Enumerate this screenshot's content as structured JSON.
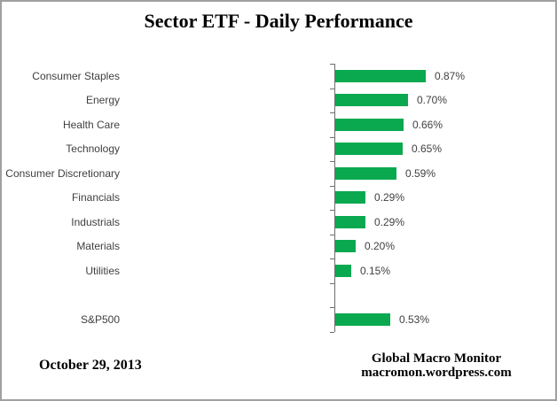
{
  "title": "Sector ETF - Daily Performance",
  "chart_data": {
    "type": "bar",
    "orientation": "horizontal",
    "title": "Sector ETF - Daily Performance",
    "value_unit": "percent",
    "xlim": [
      0,
      1.0
    ],
    "grid": false,
    "legend": false,
    "rows": [
      {
        "label": "Consumer Staples",
        "value": 0.87,
        "display": "0.87%"
      },
      {
        "label": "Energy",
        "value": 0.7,
        "display": "0.70%"
      },
      {
        "label": "Health Care",
        "value": 0.66,
        "display": "0.66%"
      },
      {
        "label": "Technology",
        "value": 0.65,
        "display": "0.65%"
      },
      {
        "label": "Consumer Discretionary",
        "value": 0.59,
        "display": "0.59%"
      },
      {
        "label": "Financials",
        "value": 0.29,
        "display": "0.29%"
      },
      {
        "label": "Industrials",
        "value": 0.29,
        "display": "0.29%"
      },
      {
        "label": "Materials",
        "value": 0.2,
        "display": "0.20%"
      },
      {
        "label": "Utilities",
        "value": 0.15,
        "display": "0.15%"
      },
      {
        "label": "",
        "value": null,
        "display": ""
      },
      {
        "label": "S&P500",
        "value": 0.53,
        "display": "0.53%"
      }
    ]
  },
  "footer": {
    "date": "October 29, 2013",
    "credit_line1": "Global Macro Monitor",
    "credit_line2": "macromon.wordpress.com"
  },
  "colors": {
    "bar": "#0aa950",
    "axis": "#6e6e6e",
    "label_text": "#3f3f3f",
    "title_text": "#000000",
    "border": "#a0a0a0"
  }
}
